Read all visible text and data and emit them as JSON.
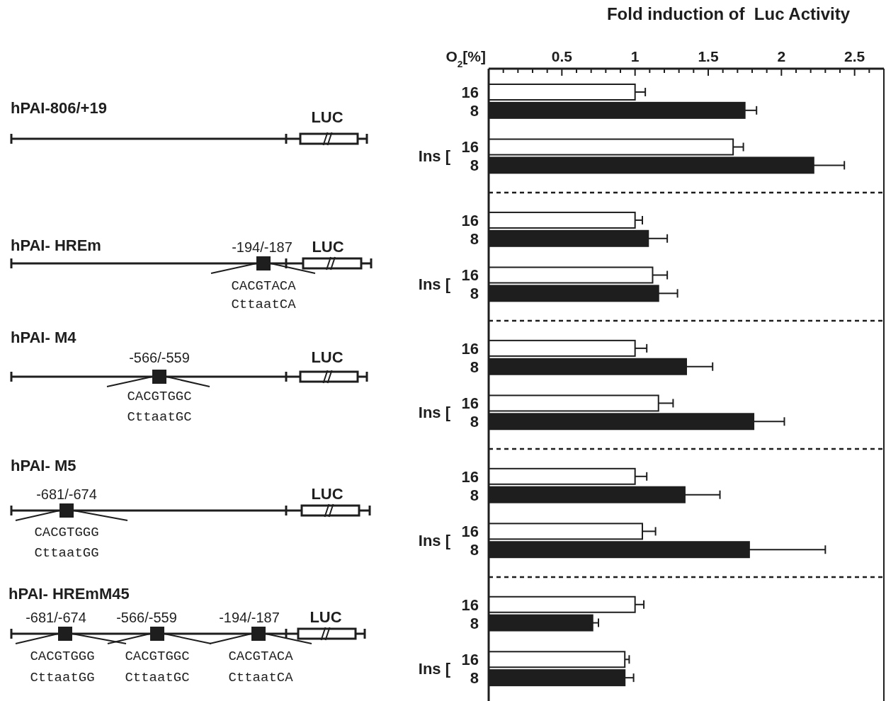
{
  "chart_data": {
    "type": "bar",
    "orientation": "horizontal",
    "title": "Fold induction of  Luc Activity",
    "ylabel": "O$_{2}$[%]",
    "categories": [
      "16",
      "8",
      null,
      "16",
      "8",
      null,
      null,
      "16",
      "8",
      null,
      "16",
      "8",
      null,
      null,
      "16",
      "8",
      null,
      "16",
      "8",
      null,
      null,
      "16",
      "8",
      null,
      "16",
      "8",
      null,
      null,
      "16",
      "8",
      null,
      "16",
      "8"
    ],
    "values": [
      1.0,
      1.75,
      null,
      1.67,
      2.22,
      null,
      null,
      1.0,
      1.09,
      null,
      1.12,
      1.16,
      null,
      null,
      1.0,
      1.35,
      null,
      1.16,
      1.81,
      null,
      null,
      1.0,
      1.34,
      null,
      1.05,
      1.78,
      null,
      null,
      1.0,
      0.71,
      null,
      0.93,
      0.93
    ],
    "errors": [
      0.07,
      0.08,
      null,
      0.07,
      0.21,
      null,
      null,
      0.05,
      0.13,
      null,
      0.1,
      0.13,
      null,
      null,
      0.08,
      0.18,
      null,
      0.1,
      0.21,
      null,
      null,
      0.08,
      0.24,
      null,
      0.09,
      0.52,
      null,
      null,
      0.06,
      0.04,
      null,
      0.03,
      0.06
    ],
    "colors": [
      "#ffffff",
      "#1e1e1e",
      null,
      "#ffffff",
      "#1e1e1e",
      null,
      null,
      "#ffffff",
      "#1e1e1e",
      null,
      "#ffffff",
      "#1e1e1e",
      null,
      null,
      "#ffffff",
      "#1e1e1e",
      null,
      "#ffffff",
      "#1e1e1e",
      null,
      null,
      "#ffffff",
      "#1e1e1e",
      null,
      "#ffffff",
      "#1e1e1e",
      null,
      null,
      "#ffffff",
      "#1e1e1e",
      null,
      "#ffffff",
      "#1e1e1e"
    ],
    "xlim": [
      0,
      2.7
    ],
    "xticks": [
      {
        "value": 0.1,
        "label": null
      },
      {
        "value": 0.2,
        "label": null
      },
      {
        "value": 0.3,
        "label": null
      },
      {
        "value": 0.4,
        "label": null
      },
      0.5,
      {
        "value": 0.6,
        "label": null
      },
      {
        "value": 0.7,
        "label": null
      },
      {
        "value": 0.8,
        "label": null
      },
      {
        "value": 0.9,
        "label": null
      },
      1,
      {
        "value": 1.1,
        "label": null
      },
      {
        "value": 1.2,
        "label": null
      },
      {
        "value": 1.3,
        "label": null
      },
      {
        "value": 1.4,
        "label": null
      },
      1.5,
      {
        "value": 1.6,
        "label": null
      },
      {
        "value": 1.7,
        "label": null
      },
      {
        "value": 1.8,
        "label": null
      },
      {
        "value": 1.9,
        "label": null
      },
      2,
      {
        "value": 2.1,
        "label": null
      },
      {
        "value": 2.2,
        "label": null
      },
      {
        "value": 2.3,
        "label": null
      },
      {
        "value": 2.4,
        "label": null
      },
      2.5,
      {
        "value": 2.6,
        "label": null
      }
    ],
    "annotations": [
      "hPAI-806/+19",
      "LUC",
      "hPAI- HREm",
      "-194/-187",
      "LUC",
      "CACGTACA",
      "CttaatCA",
      "hPAI- M4",
      "-566/-559",
      "LUC",
      "CACGTGGC",
      "CttaatGC",
      "hPAI- M5",
      "-681/-674",
      "LUC",
      "CACGTGGG",
      "CttaatGG",
      "hPAI- HREmM45",
      "-681/-674",
      "-566/-559",
      "-194/-187",
      "LUC",
      "CACGTGGG",
      "CttaatGG",
      "CACGTGGC",
      "CttaatGC",
      "CACGTACA",
      "CttaatCA",
      "Ins [",
      "Ins [",
      "Ins [",
      "Ins [",
      "Ins ["
    ]
  }
}
